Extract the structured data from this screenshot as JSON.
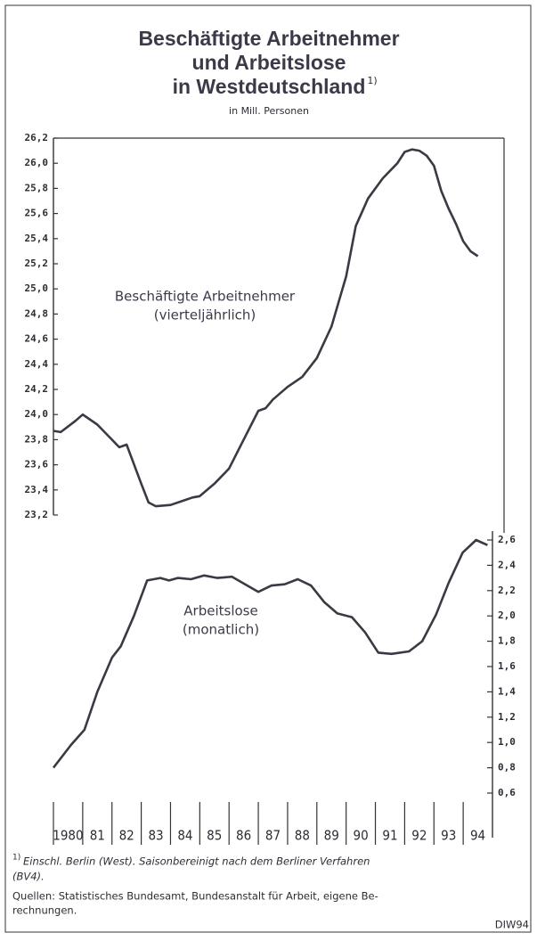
{
  "chart_data": {
    "type": "line",
    "title": [
      "Beschäftigte Arbeitnehmer",
      "und Arbeitslose",
      "in Westdeutschland"
    ],
    "title_note_marker": "1)",
    "subtitle": "in Mill. Personen",
    "xlim": [
      1980,
      1995
    ],
    "xticks": [
      {
        "value": 1980,
        "label": "1980"
      },
      {
        "value": 1981,
        "label": "81"
      },
      {
        "value": 1982,
        "label": "82"
      },
      {
        "value": 1983,
        "label": "83"
      },
      {
        "value": 1984,
        "label": "84"
      },
      {
        "value": 1985,
        "label": "85"
      },
      {
        "value": 1986,
        "label": "86"
      },
      {
        "value": 1987,
        "label": "87"
      },
      {
        "value": 1988,
        "label": "88"
      },
      {
        "value": 1989,
        "label": "89"
      },
      {
        "value": 1990,
        "label": "90"
      },
      {
        "value": 1991,
        "label": "91"
      },
      {
        "value": 1992,
        "label": "92"
      },
      {
        "value": 1993,
        "label": "93"
      },
      {
        "value": 1994,
        "label": "94"
      }
    ],
    "ylim": [
      23.2,
      26.2
    ],
    "yticks": [
      {
        "value": 26.2,
        "label": "26,2"
      },
      {
        "value": 26.0,
        "label": "26,0"
      },
      {
        "value": 25.8,
        "label": "25,8"
      },
      {
        "value": 25.6,
        "label": "25,6"
      },
      {
        "value": 25.4,
        "label": "25,4"
      },
      {
        "value": 25.2,
        "label": "25,2"
      },
      {
        "value": 25.0,
        "label": "25,0"
      },
      {
        "value": 24.8,
        "label": "24,8"
      },
      {
        "value": 24.6,
        "label": "24,6"
      },
      {
        "value": 24.4,
        "label": "24,4"
      },
      {
        "value": 24.2,
        "label": "24,2"
      },
      {
        "value": 24.0,
        "label": "24,0"
      },
      {
        "value": 23.8,
        "label": "23,8"
      },
      {
        "value": 23.6,
        "label": "23,6"
      },
      {
        "value": 23.4,
        "label": "23,4"
      },
      {
        "value": 23.2,
        "label": "23,2"
      }
    ],
    "y2lim": [
      0.6,
      2.6
    ],
    "y2ticks": [
      {
        "value": 2.6,
        "label": "2,6"
      },
      {
        "value": 2.4,
        "label": "2,4"
      },
      {
        "value": 2.2,
        "label": "2,2"
      },
      {
        "value": 2.0,
        "label": "2,0"
      },
      {
        "value": 1.8,
        "label": "1,8"
      },
      {
        "value": 1.6,
        "label": "1,6"
      },
      {
        "value": 1.4,
        "label": "1,4"
      },
      {
        "value": 1.2,
        "label": "1,2"
      },
      {
        "value": 1.0,
        "label": "1,0"
      },
      {
        "value": 0.8,
        "label": "0,8"
      },
      {
        "value": 0.6,
        "label": "0,6"
      }
    ],
    "series": [
      {
        "name": "Beschäftigte Arbeitnehmer",
        "note": "(vierteljährlich)",
        "color": "#3a3a44",
        "axis": "y",
        "x": [
          1980.0,
          1980.25,
          1980.75,
          1981.0,
          1981.5,
          1982.0,
          1982.25,
          1982.5,
          1983.0,
          1983.25,
          1983.5,
          1984.0,
          1984.5,
          1984.75,
          1985.0,
          1985.5,
          1986.0,
          1986.5,
          1987.0,
          1987.25,
          1987.5,
          1988.0,
          1988.5,
          1989.0,
          1989.5,
          1990.0,
          1990.33,
          1990.75,
          1991.25,
          1991.75,
          1992.0,
          1992.25,
          1992.5,
          1992.75,
          1993.0,
          1993.25,
          1993.5,
          1993.75,
          1994.0,
          1994.25,
          1994.5
        ],
        "values": [
          23.87,
          23.86,
          23.95,
          24.0,
          23.92,
          23.8,
          23.74,
          23.76,
          23.45,
          23.3,
          23.27,
          23.28,
          23.32,
          23.34,
          23.35,
          23.45,
          23.57,
          23.8,
          24.03,
          24.05,
          24.12,
          24.22,
          24.3,
          24.45,
          24.7,
          25.1,
          25.5,
          25.72,
          25.88,
          26.0,
          26.09,
          26.11,
          26.1,
          26.06,
          25.98,
          25.78,
          25.64,
          25.52,
          25.38,
          25.3,
          25.26
        ]
      },
      {
        "name": "Arbeitslose",
        "note": "(monatlich)",
        "color": "#3a3a44",
        "axis": "y2",
        "x": [
          1980.0,
          1980.6,
          1981.06,
          1981.5,
          1982.0,
          1982.3,
          1982.75,
          1983.2,
          1983.65,
          1983.95,
          1984.25,
          1984.7,
          1985.15,
          1985.6,
          1986.1,
          1986.55,
          1987.0,
          1987.45,
          1987.9,
          1988.35,
          1988.8,
          1989.25,
          1989.7,
          1990.2,
          1990.65,
          1991.1,
          1991.55,
          1992.15,
          1992.6,
          1993.07,
          1993.5,
          1993.98,
          1994.44,
          1994.83
        ],
        "values": [
          0.8,
          0.98,
          1.1,
          1.4,
          1.67,
          1.76,
          2.0,
          2.28,
          2.3,
          2.28,
          2.3,
          2.29,
          2.32,
          2.3,
          2.31,
          2.25,
          2.19,
          2.24,
          2.25,
          2.29,
          2.24,
          2.11,
          2.02,
          1.99,
          1.87,
          1.71,
          1.7,
          1.72,
          1.8,
          2.01,
          2.26,
          2.5,
          2.6,
          2.56
        ]
      }
    ],
    "footnote_marker": "1)",
    "footnote": [
      "Einschl. Berlin (West). Saisonbereinigt nach dem Berliner Verfahren",
      "(BV4)."
    ],
    "sources": [
      "Quellen: Statistisches Bundesamt, Bundesanstalt für Arbeit, eigene Be-",
      "rechnungen."
    ],
    "credit": "DIW94"
  }
}
